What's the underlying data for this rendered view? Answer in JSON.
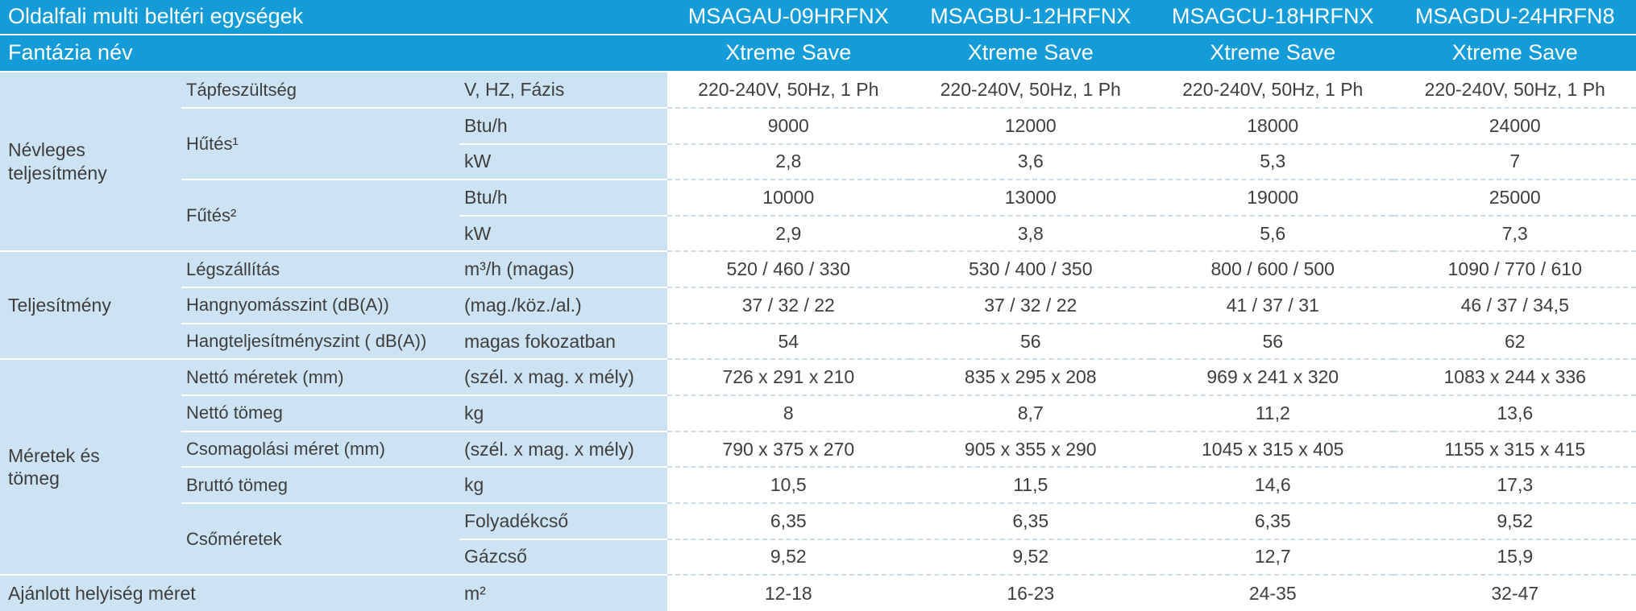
{
  "colors": {
    "header_blue": "#149cd8",
    "light_blue": "#cce3f4",
    "data_background": "#ffffff",
    "text_dark": "#3e3e3e",
    "header_text": "#ffffff"
  },
  "header": {
    "title": "Oldalfali multi beltéri egységek",
    "models": [
      "MSAGAU-09HRFNX",
      "MSAGBU-12HRFNX",
      "MSAGCU-18HRFNX",
      "MSAGDU-24HRFN8"
    ],
    "fantasy_label": "Fantázia név",
    "fantasy_values": [
      "Xtreme Save",
      "Xtreme Save",
      "Xtreme Save",
      "Xtreme Save"
    ]
  },
  "groups": {
    "nevleges": "Névleges teljesítmény",
    "teljesitmeny": "Teljesítmény",
    "meretek": "Méretek és tömeg",
    "hutes": "Hűtés¹",
    "futes": "Fűtés²",
    "csomeretek": "Csőméretek"
  },
  "rows": {
    "tapfeszultseg": {
      "label": "Tápfeszültség",
      "unit": "V, HZ, Fázis",
      "values": [
        "220-240V, 50Hz, 1 Ph",
        "220-240V, 50Hz, 1 Ph",
        "220-240V, 50Hz, 1 Ph",
        "220-240V, 50Hz, 1 Ph"
      ]
    },
    "hutes_btu": {
      "unit": "Btu/h",
      "values": [
        "9000",
        "12000",
        "18000",
        "24000"
      ]
    },
    "hutes_kw": {
      "unit": "kW",
      "values": [
        "2,8",
        "3,6",
        "5,3",
        "7"
      ]
    },
    "futes_btu": {
      "unit": "Btu/h",
      "values": [
        "10000",
        "13000",
        "19000",
        "25000"
      ]
    },
    "futes_kw": {
      "unit": "kW",
      "values": [
        "2,9",
        "3,8",
        "5,6",
        "7,3"
      ]
    },
    "legszallitas": {
      "label": "Légszállítás",
      "unit": "m³/h (magas)",
      "values": [
        "520 / 460 / 330",
        "530 / 400 / 350",
        "800 / 600 / 500",
        "1090 / 770 / 610"
      ]
    },
    "hangnyomas": {
      "label": "Hangnyomásszint (dB(A))",
      "unit": "(mag./köz./al.)",
      "values": [
        "37 / 32 / 22",
        "37 / 32 / 22",
        "41 / 37 / 31",
        "46 / 37 / 34,5"
      ]
    },
    "hangteljesitmeny": {
      "label": "Hangteljesítményszint ( dB(A))",
      "unit": "magas fokozatban",
      "values": [
        "54",
        "56",
        "56",
        "62"
      ]
    },
    "netto_meretek": {
      "label": "Nettó méretek (mm)",
      "unit": "(szél. x mag. x mély)",
      "values": [
        "726 x 291 x 210",
        "835 x 295 x 208",
        "969 x 241 x 320",
        "1083 x 244 x 336"
      ]
    },
    "netto_tomeg": {
      "label": "Nettó tömeg",
      "unit": "kg",
      "values": [
        "8",
        "8,7",
        "11,2",
        "13,6"
      ]
    },
    "csomagolasi_meret": {
      "label": "Csomagolási méret (mm)",
      "unit": "(szél. x mag. x mély)",
      "values": [
        "790 x 375 x 270",
        "905 x 355 x 290",
        "1045 x 315 x 405",
        "1155 x 315 x 415"
      ]
    },
    "brutto_tomeg": {
      "label": "Bruttó tömeg",
      "unit": "kg",
      "values": [
        "10,5",
        "11,5",
        "14,6",
        "17,3"
      ]
    },
    "folyadekcso": {
      "unit": "Folyadékcső",
      "values": [
        "6,35",
        "6,35",
        "6,35",
        "9,52"
      ]
    },
    "gazcso": {
      "unit": "Gázcső",
      "values": [
        "9,52",
        "9,52",
        "12,7",
        "15,9"
      ]
    },
    "ajanlott": {
      "label": "Ajánlott helyiség méret",
      "unit": "m²",
      "values": [
        "12-18",
        "16-23",
        "24-35",
        "32-47"
      ]
    }
  }
}
